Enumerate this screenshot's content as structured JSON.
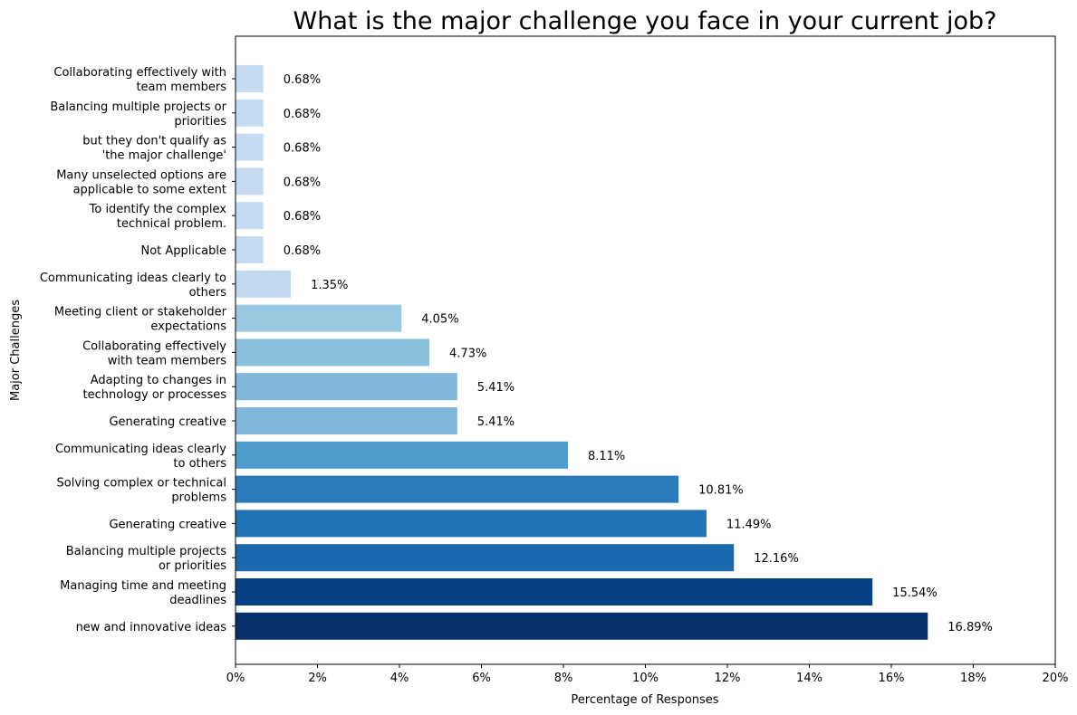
{
  "chart_data": {
    "type": "bar",
    "orientation": "horizontal",
    "title": "What is the major challenge you face in your current job?",
    "xlabel": "Percentage of Responses",
    "ylabel": "Major Challenges",
    "xlim": [
      0,
      20
    ],
    "x_ticks": [
      "0%",
      "2%",
      "4%",
      "6%",
      "8%",
      "10%",
      "12%",
      "14%",
      "16%",
      "18%",
      "20%"
    ],
    "grid": false,
    "legend": "none",
    "categories": [
      [
        "Collaborating effectively with",
        "team members"
      ],
      [
        "Balancing multiple projects or",
        "priorities"
      ],
      [
        "but they don't qualify as",
        "'the major challenge'"
      ],
      [
        "Many unselected options are",
        "applicable to some extent"
      ],
      [
        "To identify the complex",
        "technical problem."
      ],
      [
        "Not Applicable"
      ],
      [
        "Communicating ideas clearly to",
        "others"
      ],
      [
        "Meeting client or stakeholder",
        "expectations"
      ],
      [
        "Collaborating effectively",
        "with team members"
      ],
      [
        "Adapting to changes in",
        "technology or processes"
      ],
      [
        "Generating creative"
      ],
      [
        "Communicating ideas clearly",
        "to others"
      ],
      [
        "Solving complex or technical",
        "problems"
      ],
      [
        "Generating creative"
      ],
      [
        "Balancing multiple projects",
        "or priorities"
      ],
      [
        "Managing time and meeting",
        "deadlines"
      ],
      [
        "new and innovative ideas"
      ]
    ],
    "values": [
      0.68,
      0.68,
      0.68,
      0.68,
      0.68,
      0.68,
      1.35,
      4.05,
      4.73,
      5.41,
      5.41,
      8.11,
      10.81,
      11.49,
      12.16,
      15.54,
      16.89
    ],
    "value_labels": [
      "0.68%",
      "0.68%",
      "0.68%",
      "0.68%",
      "0.68%",
      "0.68%",
      "1.35%",
      "4.05%",
      "4.73%",
      "5.41%",
      "5.41%",
      "8.11%",
      "10.81%",
      "11.49%",
      "12.16%",
      "15.54%",
      "16.89%"
    ],
    "colors": [
      "#c6dbef",
      "#c6dbef",
      "#c6dbef",
      "#c6dbef",
      "#c6dbef",
      "#c6dbef",
      "#c3daee",
      "#9ac8e0",
      "#8bc0dd",
      "#7fb6da",
      "#7fb6da",
      "#4f9bcb",
      "#2b7bba",
      "#2272b6",
      "#1c68af",
      "#084083",
      "#08306b"
    ]
  }
}
